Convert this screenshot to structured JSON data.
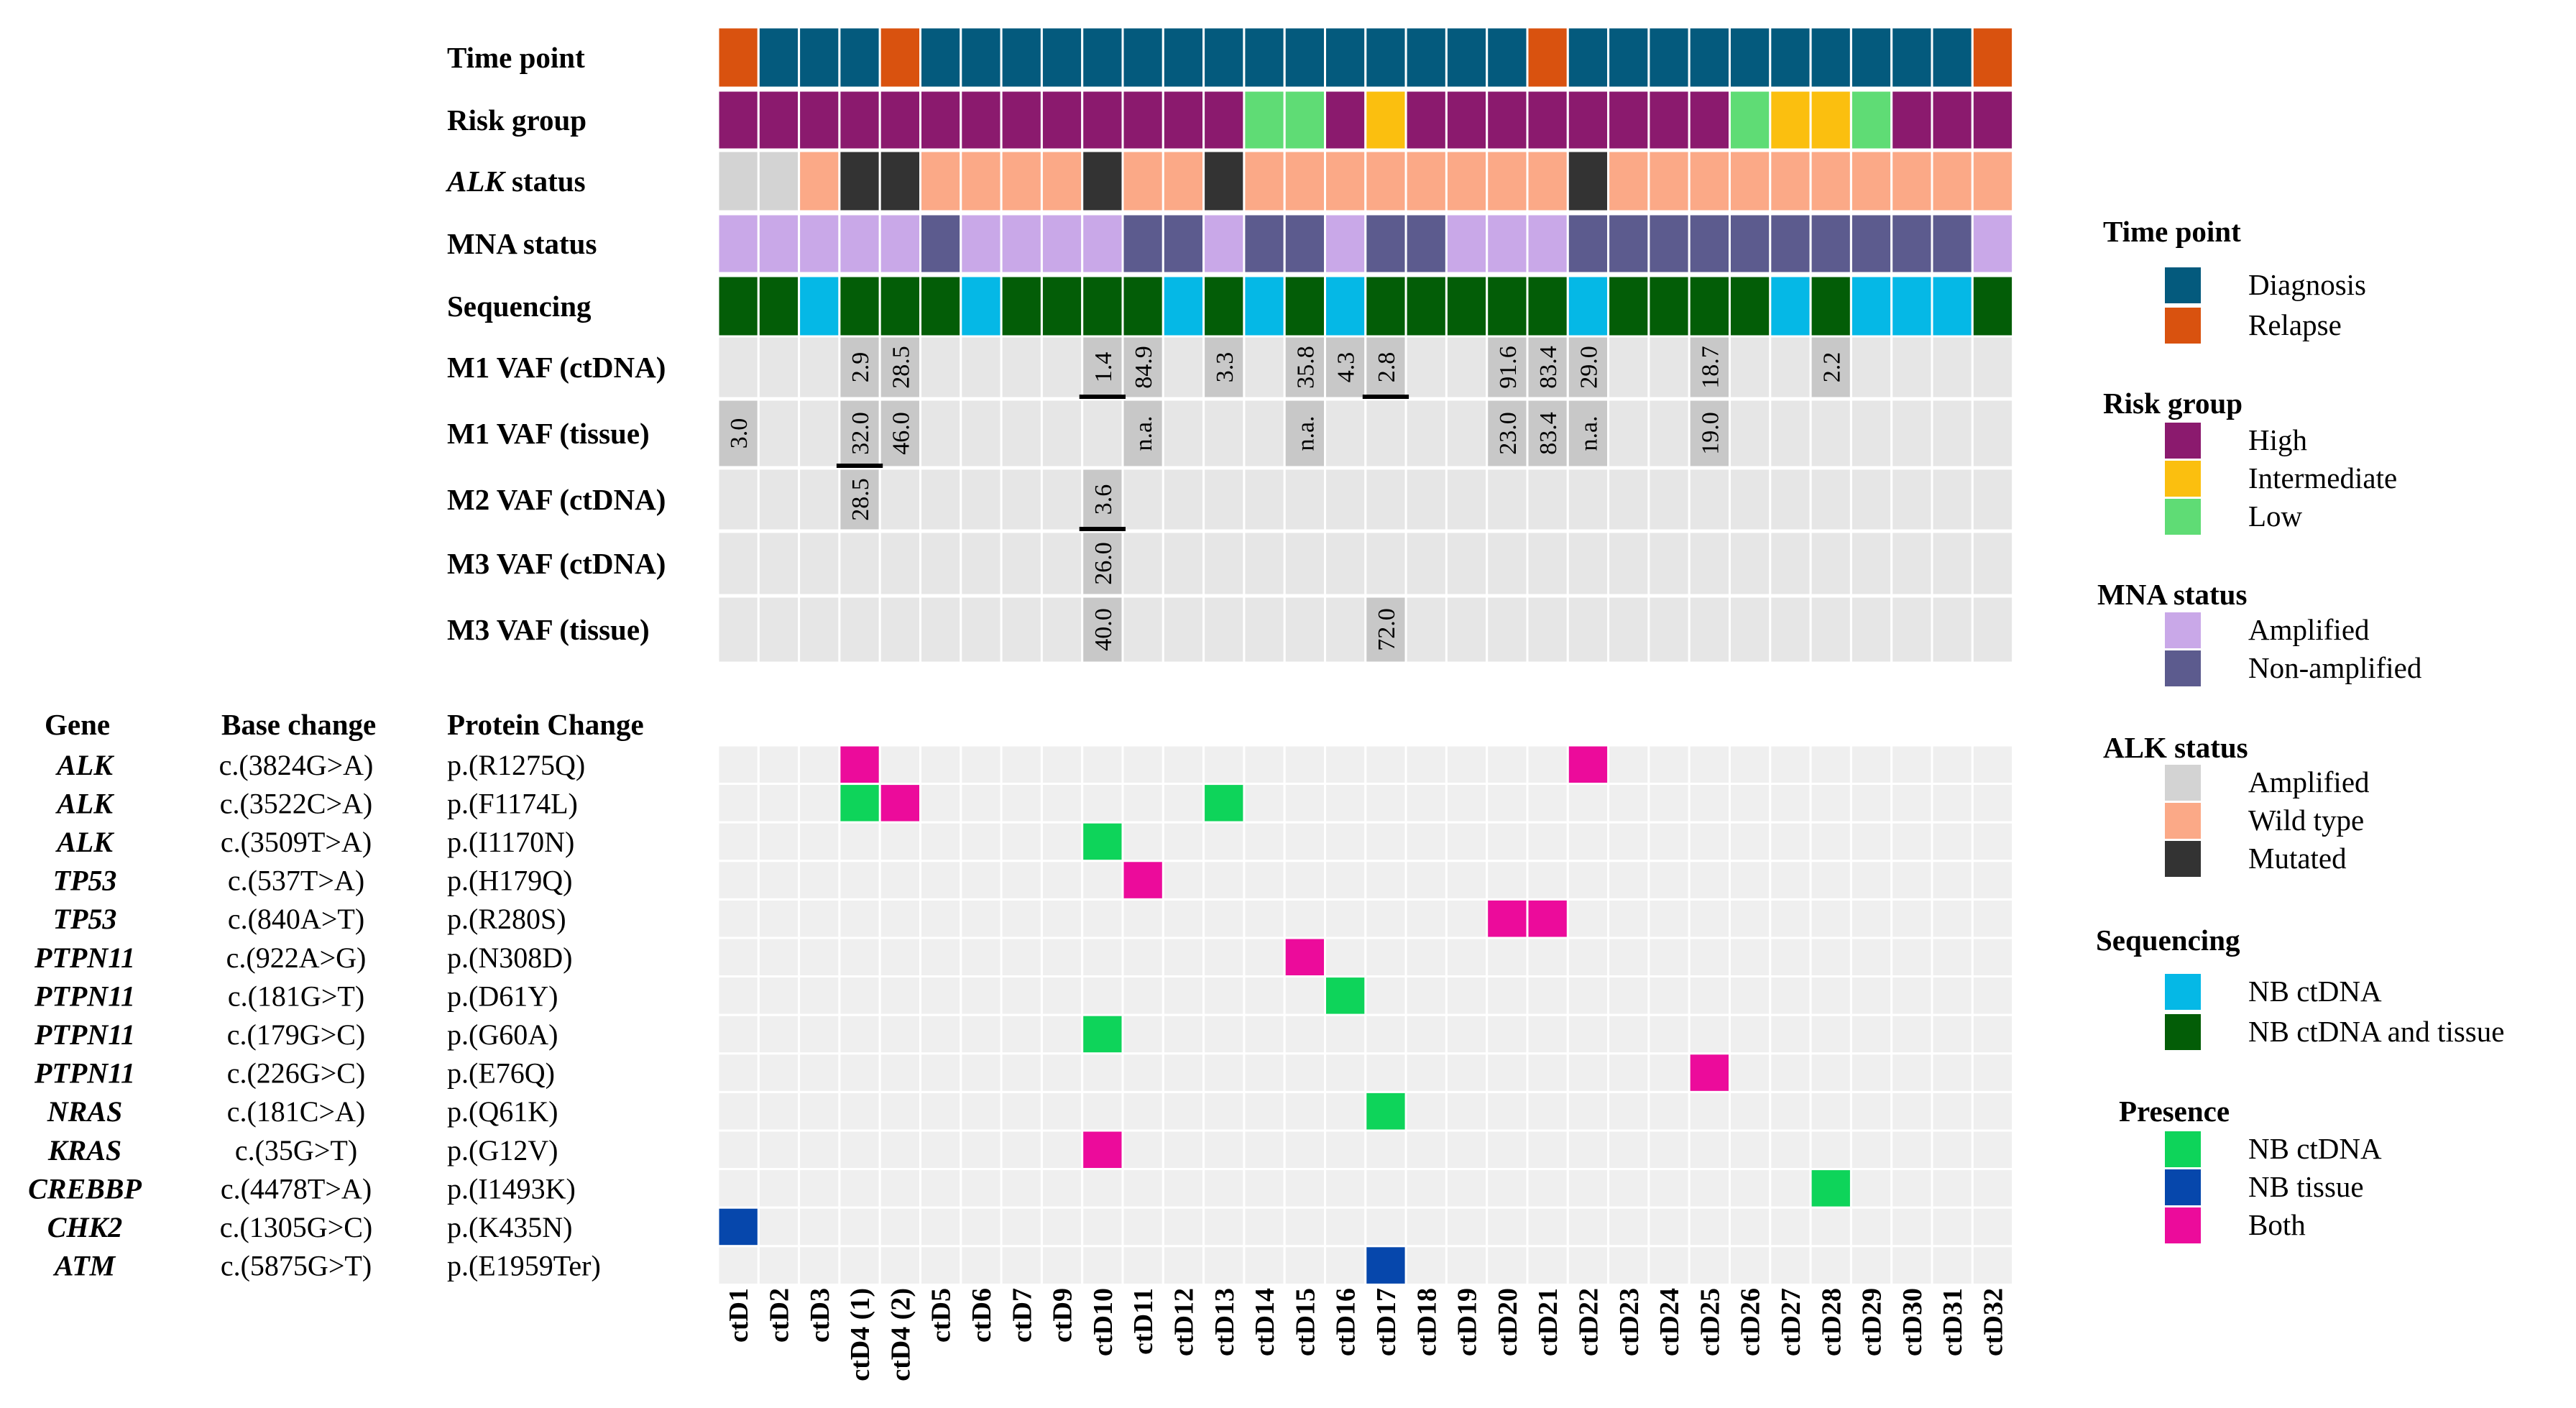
{
  "chart_data": {
    "type": "heatmap",
    "samples": [
      "ctD1",
      "ctD2",
      "ctD3",
      "ctD4 (1)",
      "ctD4 (2)",
      "ctD5",
      "ctD6",
      "ctD7",
      "ctD9",
      "ctD10",
      "ctD11",
      "ctD12",
      "ctD13",
      "ctD14",
      "ctD15",
      "ctD16",
      "ctD17",
      "ctD18",
      "ctD19",
      "ctD20",
      "ctD21",
      "ctD22",
      "ctD23",
      "ctD24",
      "ctD25",
      "ctD26",
      "ctD27",
      "ctD28",
      "ctD29",
      "ctD30",
      "ctD31",
      "ctD32"
    ],
    "annotation_rows": [
      {
        "key": "time",
        "label": "Time point",
        "values": [
          "Relapse",
          "Diagnosis",
          "Diagnosis",
          "Diagnosis",
          "Relapse",
          "Diagnosis",
          "Diagnosis",
          "Diagnosis",
          "Diagnosis",
          "Diagnosis",
          "Diagnosis",
          "Diagnosis",
          "Diagnosis",
          "Diagnosis",
          "Diagnosis",
          "Diagnosis",
          "Diagnosis",
          "Diagnosis",
          "Diagnosis",
          "Diagnosis",
          "Relapse",
          "Diagnosis",
          "Diagnosis",
          "Diagnosis",
          "Diagnosis",
          "Diagnosis",
          "Diagnosis",
          "Diagnosis",
          "Diagnosis",
          "Diagnosis",
          "Diagnosis",
          "Relapse"
        ]
      },
      {
        "key": "risk",
        "label": "Risk group",
        "values": [
          "High",
          "High",
          "High",
          "High",
          "High",
          "High",
          "High",
          "High",
          "High",
          "High",
          "High",
          "High",
          "High",
          "Low",
          "Low",
          "High",
          "Intermediate",
          "High",
          "High",
          "High",
          "High",
          "High",
          "High",
          "High",
          "High",
          "Low",
          "Intermediate",
          "Intermediate",
          "Low",
          "High",
          "High",
          "High"
        ]
      },
      {
        "key": "alk",
        "label_italic": "ALK",
        "label": " status",
        "values": [
          "Amplified",
          "Amplified",
          "Wild type",
          "Mutated",
          "Mutated",
          "Wild type",
          "Wild type",
          "Wild type",
          "Wild type",
          "Mutated",
          "Wild type",
          "Wild type",
          "Mutated",
          "Wild type",
          "Wild type",
          "Wild type",
          "Wild type",
          "Wild type",
          "Wild type",
          "Wild type",
          "Wild type",
          "Mutated",
          "Wild type",
          "Wild type",
          "Wild type",
          "Wild type",
          "Wild type",
          "Wild type",
          "Wild type",
          "Wild type",
          "Wild type",
          "Wild type"
        ]
      },
      {
        "key": "mna",
        "label": "MNA status",
        "values": [
          "Amplified",
          "Amplified",
          "Amplified",
          "Amplified",
          "Amplified",
          "Non-amplified",
          "Amplified",
          "Amplified",
          "Amplified",
          "Amplified",
          "Non-amplified",
          "Non-amplified",
          "Amplified",
          "Non-amplified",
          "Non-amplified",
          "Amplified",
          "Non-amplified",
          "Non-amplified",
          "Amplified",
          "Amplified",
          "Amplified",
          "Non-amplified",
          "Non-amplified",
          "Non-amplified",
          "Non-amplified",
          "Non-amplified",
          "Non-amplified",
          "Non-amplified",
          "Non-amplified",
          "Non-amplified",
          "Non-amplified",
          "Amplified"
        ]
      },
      {
        "key": "seq",
        "label": "Sequencing",
        "values": [
          "NB ctDNA and tissue",
          "NB ctDNA and tissue",
          "NB ctDNA",
          "NB ctDNA and tissue",
          "NB ctDNA and tissue",
          "NB ctDNA and tissue",
          "NB ctDNA",
          "NB ctDNA and tissue",
          "NB ctDNA and tissue",
          "NB ctDNA and tissue",
          "NB ctDNA and tissue",
          "NB ctDNA",
          "NB ctDNA and tissue",
          "NB ctDNA",
          "NB ctDNA and tissue",
          "NB ctDNA",
          "NB ctDNA and tissue",
          "NB ctDNA and tissue",
          "NB ctDNA and tissue",
          "NB ctDNA and tissue",
          "NB ctDNA and tissue",
          "NB ctDNA",
          "NB ctDNA and tissue",
          "NB ctDNA and tissue",
          "NB ctDNA and tissue",
          "NB ctDNA and tissue",
          "NB ctDNA",
          "NB ctDNA and tissue",
          "NB ctDNA",
          "NB ctDNA",
          "NB ctDNA",
          "NB ctDNA and tissue"
        ]
      }
    ],
    "vaf_rows": [
      {
        "label": "M1 VAF (ctDNA)",
        "values": [
          null,
          null,
          null,
          "2.9",
          "28.5",
          null,
          null,
          null,
          null,
          "1.4",
          "84.9",
          null,
          "3.3",
          null,
          "35.8",
          "4.3",
          "2.8",
          null,
          null,
          "91.6",
          "83.4",
          "29.0",
          null,
          null,
          "18.7",
          null,
          null,
          "2.2",
          null,
          null,
          null,
          null
        ]
      },
      {
        "label": "M1 VAF (tissue)",
        "values": [
          "3.0",
          null,
          null,
          "32.0",
          "46.0",
          null,
          null,
          null,
          null,
          null,
          "n.a.",
          null,
          null,
          null,
          "n.a.",
          null,
          null,
          null,
          null,
          "23.0",
          "83.4",
          "n.a.",
          null,
          null,
          "19.0",
          null,
          null,
          null,
          null,
          null,
          null,
          null
        ]
      },
      {
        "label": "M2 VAF (ctDNA)",
        "values": [
          null,
          null,
          null,
          "28.5",
          null,
          null,
          null,
          null,
          null,
          "3.6",
          null,
          null,
          null,
          null,
          null,
          null,
          null,
          null,
          null,
          null,
          null,
          null,
          null,
          null,
          null,
          null,
          null,
          null,
          null,
          null,
          null,
          null
        ]
      },
      {
        "label": "M3 VAF (ctDNA)",
        "values": [
          null,
          null,
          null,
          null,
          null,
          null,
          null,
          null,
          null,
          "26.0",
          null,
          null,
          null,
          null,
          null,
          null,
          null,
          null,
          null,
          null,
          null,
          null,
          null,
          null,
          null,
          null,
          null,
          null,
          null,
          null,
          null,
          null
        ]
      },
      {
        "label": "M3 VAF (tissue)",
        "values": [
          null,
          null,
          null,
          null,
          null,
          null,
          null,
          null,
          null,
          "40.0",
          null,
          null,
          null,
          null,
          null,
          null,
          "72.0",
          null,
          null,
          null,
          null,
          null,
          null,
          null,
          null,
          null,
          null,
          null,
          null,
          null,
          null,
          null
        ]
      }
    ],
    "vaf_underlines": [
      {
        "row": 0,
        "col": 9
      },
      {
        "row": 0,
        "col": 16
      },
      {
        "row": 1,
        "col": 3
      },
      {
        "row": 2,
        "col": 9
      }
    ],
    "mutation_headers": {
      "gene": "Gene",
      "base": "Base change",
      "protein": "Protein Change"
    },
    "mutations": [
      {
        "gene": "ALK",
        "base": "c.(3824G>A)",
        "protein": "p.(R1275Q)",
        "hits": [
          {
            "col": 3,
            "presence": "Both"
          },
          {
            "col": 21,
            "presence": "Both"
          }
        ]
      },
      {
        "gene": "ALK",
        "base": "c.(3522C>A)",
        "protein": "p.(F1174L)",
        "hits": [
          {
            "col": 3,
            "presence": "NB ctDNA"
          },
          {
            "col": 4,
            "presence": "Both"
          },
          {
            "col": 12,
            "presence": "NB ctDNA"
          }
        ]
      },
      {
        "gene": "ALK",
        "base": "c.(3509T>A)",
        "protein": "p.(I1170N)",
        "hits": [
          {
            "col": 9,
            "presence": "NB ctDNA"
          }
        ]
      },
      {
        "gene": "TP53",
        "base": "c.(537T>A)",
        "protein": "p.(H179Q)",
        "hits": [
          {
            "col": 10,
            "presence": "Both"
          }
        ]
      },
      {
        "gene": "TP53",
        "base": "c.(840A>T)",
        "protein": "p.(R280S)",
        "hits": [
          {
            "col": 19,
            "presence": "Both"
          },
          {
            "col": 20,
            "presence": "Both"
          }
        ]
      },
      {
        "gene": "PTPN11",
        "base": "c.(922A>G)",
        "protein": "p.(N308D)",
        "hits": [
          {
            "col": 14,
            "presence": "Both"
          }
        ]
      },
      {
        "gene": "PTPN11",
        "base": "c.(181G>T)",
        "protein": "p.(D61Y)",
        "hits": [
          {
            "col": 15,
            "presence": "NB ctDNA"
          }
        ]
      },
      {
        "gene": "PTPN11",
        "base": "c.(179G>C)",
        "protein": "p.(G60A)",
        "hits": [
          {
            "col": 9,
            "presence": "NB ctDNA"
          }
        ]
      },
      {
        "gene": "PTPN11",
        "base": "c.(226G>C)",
        "protein": "p.(E76Q)",
        "hits": [
          {
            "col": 24,
            "presence": "Both"
          }
        ]
      },
      {
        "gene": "NRAS",
        "base": "c.(181C>A)",
        "protein": "p.(Q61K)",
        "hits": [
          {
            "col": 16,
            "presence": "NB ctDNA"
          }
        ]
      },
      {
        "gene": "KRAS",
        "base": "c.(35G>T)",
        "protein": "p.(G12V)",
        "hits": [
          {
            "col": 9,
            "presence": "Both"
          }
        ]
      },
      {
        "gene": "CREBBP",
        "base": "c.(4478T>A)",
        "protein": "p.(I1493K)",
        "hits": [
          {
            "col": 27,
            "presence": "NB ctDNA"
          }
        ]
      },
      {
        "gene": "CHK2",
        "base": "c.(1305G>C)",
        "protein": "p.(K435N)",
        "hits": [
          {
            "col": 0,
            "presence": "NB tissue"
          }
        ]
      },
      {
        "gene": "ATM",
        "base": "c.(5875G>T)",
        "protein": "p.(E1959Ter)",
        "hits": [
          {
            "col": 16,
            "presence": "NB tissue"
          }
        ]
      }
    ],
    "legends": [
      {
        "title": "Time point",
        "items": [
          {
            "label": "Diagnosis",
            "color": "#045a7d"
          },
          {
            "label": "Relapse",
            "color": "#d9520f"
          }
        ]
      },
      {
        "title": "Risk group",
        "items": [
          {
            "label": "High",
            "color": "#8b1a6e"
          },
          {
            "label": "Intermediate",
            "color": "#fbbf0f"
          },
          {
            "label": "Low",
            "color": "#5fdc75"
          }
        ]
      },
      {
        "title": "MNA status",
        "items": [
          {
            "label": "Amplified",
            "color": "#c9a8e8"
          },
          {
            "label": "Non-amplified",
            "color": "#5c5b8e"
          }
        ]
      },
      {
        "title": "ALK status",
        "items": [
          {
            "label": "Amplified",
            "color": "#d3d3d3"
          },
          {
            "label": "Wild type",
            "color": "#fba987"
          },
          {
            "label": "Mutated",
            "color": "#333333"
          }
        ]
      },
      {
        "title": "Sequencing",
        "items": [
          {
            "label": "NB ctDNA",
            "color": "#05b8e6"
          },
          {
            "label": "NB ctDNA and tissue",
            "color": "#035d07"
          }
        ]
      },
      {
        "title": "Presence",
        "items": [
          {
            "label": "NB ctDNA",
            "color": "#0ed45a"
          },
          {
            "label": "NB tissue",
            "color": "#0647ac"
          },
          {
            "label": "Both",
            "color": "#ec0b9b"
          }
        ]
      }
    ],
    "colors": {
      "vaf_bg": "#e6e6e6",
      "vaf_cell": "#c8c8c8",
      "mut_bg": "#efefef",
      "grid": "#ffffff"
    }
  }
}
